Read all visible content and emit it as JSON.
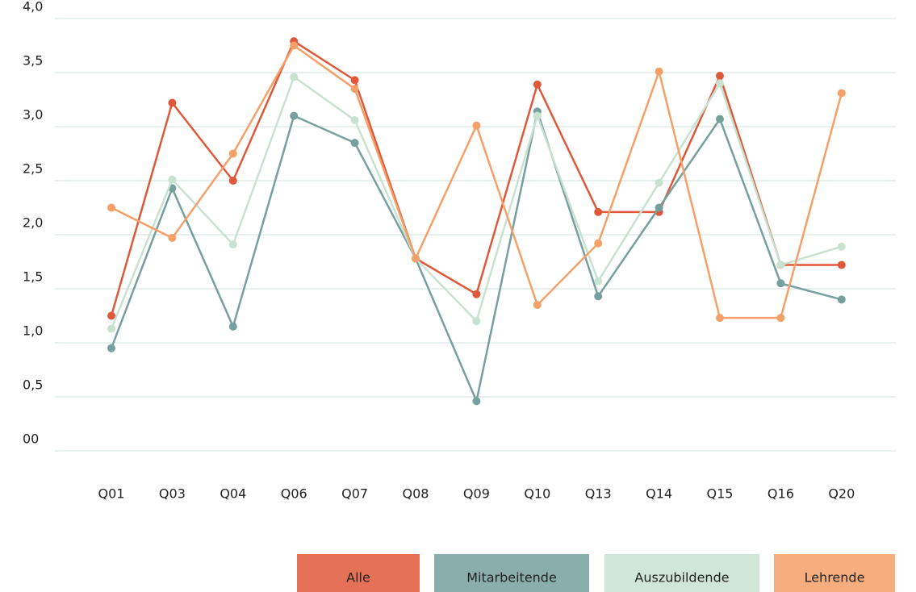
{
  "chart_data": {
    "type": "line",
    "categories": [
      "Q01",
      "Q03",
      "Q04",
      "Q06",
      "Q07",
      "Q08",
      "Q09",
      "Q10",
      "Q13",
      "Q14",
      "Q15",
      "Q16",
      "Q20"
    ],
    "series": [
      {
        "name": "Alle",
        "color": "#e0583a",
        "values": [
          1.25,
          3.22,
          2.5,
          3.79,
          3.43,
          1.78,
          1.45,
          3.39,
          2.21,
          2.21,
          3.47,
          1.72,
          1.72
        ]
      },
      {
        "name": "Mitarbeitende",
        "color": "#76a09e",
        "values": [
          0.95,
          2.43,
          1.15,
          3.1,
          2.85,
          1.78,
          0.46,
          3.14,
          1.43,
          2.25,
          3.07,
          1.55,
          1.4
        ]
      },
      {
        "name": "Auszubildende",
        "color": "#c8e2d2",
        "values": [
          1.13,
          2.51,
          1.91,
          3.46,
          3.06,
          1.78,
          1.2,
          3.1,
          1.57,
          2.48,
          3.4,
          1.72,
          1.89
        ]
      },
      {
        "name": "Lehrende",
        "color": "#f4a068",
        "values": [
          2.25,
          1.97,
          2.75,
          3.75,
          3.35,
          1.78,
          3.01,
          1.35,
          1.92,
          3.51,
          1.23,
          1.23,
          3.31
        ]
      }
    ],
    "ylim": [
      0,
      4
    ],
    "yticks": [
      {
        "value": 0,
        "label": "00"
      },
      {
        "value": 0.5,
        "label": "0,5"
      },
      {
        "value": 1,
        "label": "1,0"
      },
      {
        "value": 1.5,
        "label": "1,5"
      },
      {
        "value": 2,
        "label": "2,0"
      },
      {
        "value": 2.5,
        "label": "2,5"
      },
      {
        "value": 3,
        "label": "3,0"
      },
      {
        "value": 3.5,
        "label": "3,5"
      },
      {
        "value": 4,
        "label": "4,0"
      }
    ],
    "grid": true,
    "legend": "bottom-right"
  }
}
